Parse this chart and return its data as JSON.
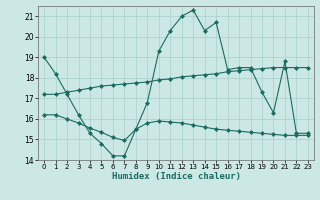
{
  "title": "",
  "xlabel": "Humidex (Indice chaleur)",
  "ylabel": "",
  "xlim": [
    -0.5,
    23.5
  ],
  "ylim": [
    14,
    21.5
  ],
  "yticks": [
    14,
    15,
    16,
    17,
    18,
    19,
    20,
    21
  ],
  "xticks": [
    0,
    1,
    2,
    3,
    4,
    5,
    6,
    7,
    8,
    9,
    10,
    11,
    12,
    13,
    14,
    15,
    16,
    17,
    18,
    19,
    20,
    21,
    22,
    23
  ],
  "background_color": "#cce8e5",
  "grid_color": "#aacfcc",
  "line_color": "#1a6b60",
  "curve1_x": [
    0,
    1,
    2,
    3,
    4,
    5,
    6,
    7,
    8,
    9,
    10,
    11,
    12,
    13,
    14,
    15,
    16,
    17,
    18,
    19,
    20,
    21,
    22,
    23
  ],
  "curve1_y": [
    19.0,
    18.2,
    17.2,
    16.2,
    15.3,
    14.8,
    14.2,
    14.2,
    15.5,
    16.8,
    19.3,
    20.3,
    21.0,
    21.3,
    20.3,
    20.7,
    18.4,
    18.5,
    18.5,
    17.3,
    16.3,
    18.8,
    15.3,
    15.3
  ],
  "curve2_x": [
    0,
    1,
    2,
    3,
    4,
    5,
    6,
    7,
    8,
    9,
    10,
    11,
    12,
    13,
    14,
    15,
    16,
    17,
    18,
    19,
    20,
    21,
    22,
    23
  ],
  "curve2_y": [
    17.2,
    17.2,
    17.3,
    17.4,
    17.5,
    17.6,
    17.65,
    17.7,
    17.75,
    17.8,
    17.9,
    17.95,
    18.05,
    18.1,
    18.15,
    18.2,
    18.3,
    18.35,
    18.4,
    18.45,
    18.5,
    18.5,
    18.5,
    18.5
  ],
  "curve3_x": [
    0,
    1,
    2,
    3,
    4,
    5,
    6,
    7,
    8,
    9,
    10,
    11,
    12,
    13,
    14,
    15,
    16,
    17,
    18,
    19,
    20,
    21,
    22,
    23
  ],
  "curve3_y": [
    16.2,
    16.2,
    16.0,
    15.8,
    15.55,
    15.35,
    15.1,
    14.95,
    15.5,
    15.8,
    15.9,
    15.85,
    15.8,
    15.7,
    15.6,
    15.5,
    15.45,
    15.4,
    15.35,
    15.3,
    15.25,
    15.2,
    15.2,
    15.2
  ]
}
